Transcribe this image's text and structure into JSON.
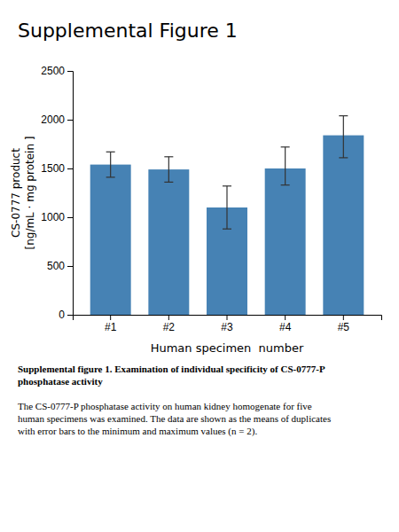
{
  "chart_data": {
    "type": "bar",
    "title": "Supplemental Figure 1",
    "categories": [
      "#1",
      "#2",
      "#3",
      "#4",
      "#5"
    ],
    "values": [
      1540,
      1490,
      1100,
      1500,
      1840
    ],
    "errors_low": [
      130,
      130,
      220,
      170,
      230
    ],
    "errors_high": [
      130,
      130,
      220,
      220,
      200
    ],
    "xlabel": "Human specimen  number",
    "ylabel": "CS-0777 product\n[ng/mL · mg protein ]",
    "ylim": [
      0,
      2500
    ],
    "yticks": [
      0,
      500,
      1000,
      1500,
      2000,
      2500
    ],
    "grid": false,
    "annotations": [
      "Supplemental figure 1. Examination of individual specificity of CS-0777-P\nphosphatase activity",
      "The CS-0777-P phosphatase activity on human kidney homogenate for five\nhuman specimens was examined. The data are shown as the means of duplicates\nwith error bars to the minimum and maximum values (n = 2)."
    ]
  }
}
